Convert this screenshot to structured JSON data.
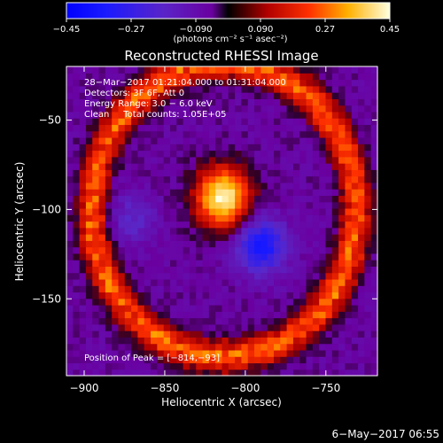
{
  "chart_data": {
    "type": "heatmap",
    "title": "Reconstructed RHESSI Image",
    "xlabel": "Heliocentric X (arcsec)",
    "ylabel": "Heliocentric Y (arcsec)",
    "xlim": [
      -911,
      -718
    ],
    "ylim": [
      -193,
      -20
    ],
    "x_ticks": [
      -900,
      -850,
      -800,
      -750
    ],
    "y_ticks": [
      -50,
      -100,
      -150
    ],
    "x_tick_labels": [
      "−900",
      "−850",
      "−800",
      "−750"
    ],
    "y_tick_labels": [
      "−50",
      "−100",
      "−150"
    ],
    "colorbar": {
      "range": [
        -0.45,
        0.45
      ],
      "ticks": [
        -0.45,
        -0.27,
        -0.09,
        0.09,
        0.27,
        0.45
      ],
      "tick_labels": [
        "−0.45",
        "−0.27",
        "−0.090",
        "0.090",
        "0.27",
        "0.45"
      ],
      "unit_label": "(photons cm⁻² s⁻¹ asec⁻²)"
    },
    "annotations": [
      "28−Mar−2017 01:21:04.000 to 01:31:04.000",
      "Detectors: 3F 6F, Att 0",
      "Energy Range: 3.0 − 6.0 keV",
      "Clean     Total counts: 1.05E+05"
    ],
    "peak_label": "Position of Peak = [−814,−93]",
    "peak": [
      -814,
      -93
    ],
    "features": {
      "background": -0.05,
      "ring": {
        "center": [
          -813,
          -100
        ],
        "radius": 82,
        "value": 0.28
      },
      "source_bright": {
        "center": [
          -814,
          -93
        ],
        "value": 0.45
      },
      "source_negative": {
        "center": [
          -790,
          -120
        ],
        "value": -0.3
      },
      "source_negative_2": {
        "center": [
          -870,
          -105
        ],
        "value": -0.12
      }
    }
  },
  "footer_date": "6−May−2017 06:55",
  "colors": {
    "background": "#000000",
    "axis": "#ffffff"
  }
}
